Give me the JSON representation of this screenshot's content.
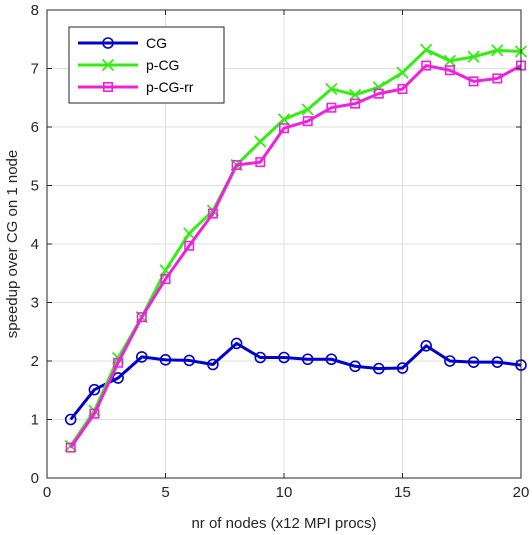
{
  "chart_data": {
    "type": "line",
    "title": "",
    "xlabel": "nr of nodes (x12 MPI procs)",
    "ylabel": "speedup over CG on 1 node",
    "xlim": [
      0,
      20
    ],
    "ylim": [
      0,
      8
    ],
    "xticks": [
      0,
      5,
      10,
      15,
      20
    ],
    "yticks": [
      0,
      1,
      2,
      3,
      4,
      5,
      6,
      7,
      8
    ],
    "grid": true,
    "legend_position": "top-left",
    "x": [
      1,
      2,
      3,
      4,
      5,
      6,
      7,
      8,
      9,
      10,
      11,
      12,
      13,
      14,
      15,
      16,
      17,
      18,
      19,
      20
    ],
    "series": [
      {
        "name": "CG",
        "color": "#0000cc",
        "marker": "circle",
        "values": [
          1.0,
          1.51,
          1.71,
          2.07,
          2.02,
          2.01,
          1.94,
          2.3,
          2.06,
          2.06,
          2.03,
          2.03,
          1.91,
          1.87,
          1.88,
          2.26,
          2.0,
          1.98,
          1.98,
          1.93
        ]
      },
      {
        "name": "p-CG",
        "color": "#33ee11",
        "marker": "x",
        "values": [
          0.55,
          1.15,
          2.05,
          2.75,
          3.55,
          4.18,
          4.57,
          5.35,
          5.75,
          6.13,
          6.3,
          6.65,
          6.55,
          6.68,
          6.93,
          7.32,
          7.13,
          7.2,
          7.31,
          7.29
        ]
      },
      {
        "name": "p-CG-rr",
        "color": "#ee22dd",
        "marker": "square",
        "values": [
          0.52,
          1.1,
          1.97,
          2.75,
          3.4,
          3.97,
          4.52,
          5.35,
          5.4,
          5.98,
          6.1,
          6.33,
          6.4,
          6.57,
          6.65,
          7.05,
          6.97,
          6.78,
          6.83,
          7.05
        ]
      }
    ]
  }
}
